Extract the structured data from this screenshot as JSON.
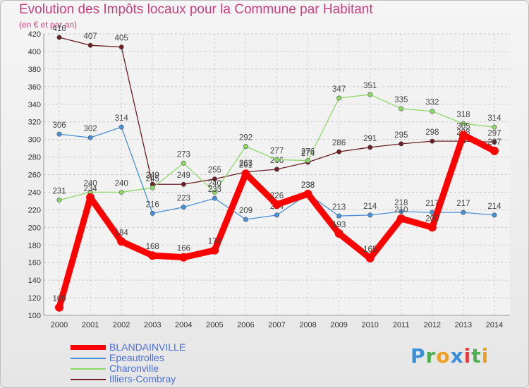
{
  "chart_data": {
    "type": "line",
    "title": "Evolution des Impôts locaux pour la Commune par Habitant",
    "subtitle": "(en € et par an)",
    "xlabel": "",
    "ylabel": "",
    "x": [
      "2000",
      "2001",
      "2002",
      "2003",
      "2004",
      "2005",
      "2006",
      "2007",
      "2008",
      "2009",
      "2010",
      "2011",
      "2012",
      "2013",
      "2014"
    ],
    "ylim": [
      100,
      420
    ],
    "yticks": [
      100,
      120,
      140,
      160,
      180,
      200,
      220,
      240,
      260,
      280,
      300,
      320,
      340,
      360,
      380,
      400,
      420
    ],
    "grid": true,
    "series": [
      {
        "name": "Illiers-Combray",
        "color": "#6b1f24",
        "values": [
          416,
          407,
          405,
          249,
          249,
          255,
          263,
          266,
          274,
          286,
          291,
          295,
          298,
          298,
          297
        ],
        "labels": [
          "416",
          "407",
          "405",
          "249",
          "249",
          "255",
          "263",
          "266",
          "274",
          "286",
          "291",
          "295",
          "298",
          "298",
          "297"
        ]
      },
      {
        "name": "Charonville",
        "color": "#8ed86a",
        "values": [
          231,
          240,
          240,
          245,
          273,
          240,
          292,
          277,
          276,
          347,
          351,
          335,
          332,
          318,
          314
        ],
        "labels": [
          "231",
          "240",
          "240",
          "245",
          "273",
          "240",
          "292",
          "277",
          "276",
          "347",
          "351",
          "335",
          "332",
          "318",
          "314"
        ]
      },
      {
        "name": "Epeautrolles",
        "color": "#4a90d9",
        "values": [
          306,
          302,
          314,
          216,
          223,
          233,
          209,
          214,
          238,
          213,
          214,
          218,
          217,
          217,
          214
        ],
        "labels": [
          "306",
          "302",
          "314",
          "216",
          "223",
          "233",
          "209",
          "214",
          "238",
          "213",
          "214",
          "218",
          "217",
          "217",
          "214"
        ]
      },
      {
        "name": "BLANDAINVILLE",
        "color": "#ff0000",
        "values": [
          109,
          234,
          184,
          168,
          166,
          174,
          261,
          226,
          238,
          193,
          165,
          210,
          200,
          305,
          287
        ],
        "labels": [
          "109",
          "234",
          "184",
          "168",
          "166",
          "174",
          "261",
          "226",
          "238",
          "193",
          "165",
          "210",
          "200",
          "305",
          "287"
        ]
      }
    ],
    "legend": [
      {
        "name": "BLANDAINVILLE",
        "color": "#ff0000",
        "text_color": "#4a6fe0",
        "thick": true
      },
      {
        "name": "Epeautrolles",
        "color": "#4a90d9",
        "text_color": "#4a6fe0",
        "thick": false
      },
      {
        "name": "Charonville",
        "color": "#8ed86a",
        "text_color": "#4a6fe0",
        "thick": false
      },
      {
        "name": "Illiers-Combray",
        "color": "#6b1f24",
        "text_color": "#4a6fe0",
        "thick": false
      }
    ]
  },
  "logo": {
    "p": "P",
    "r": "r",
    "o": "o",
    "x": "x",
    "i": "i",
    "t": "t",
    "i2": "i"
  }
}
